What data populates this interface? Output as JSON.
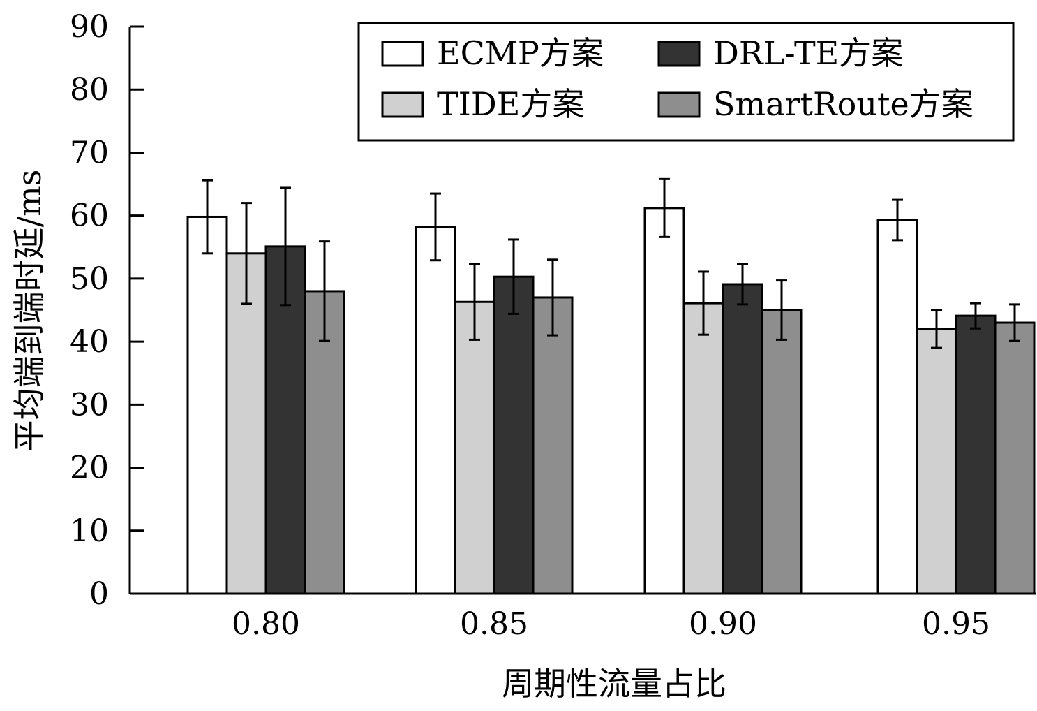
{
  "chart_data": {
    "type": "bar",
    "title": "",
    "xlabel": "周期性流量占比",
    "ylabel": "平均端到端时延/ms",
    "ylim": [
      0,
      90
    ],
    "yticks": [
      0,
      10,
      20,
      30,
      40,
      50,
      60,
      70,
      80,
      90
    ],
    "categories": [
      "0.80",
      "0.85",
      "0.90",
      "0.95"
    ],
    "grid": false,
    "legend_position": "top-right",
    "series": [
      {
        "name": "ECMP方案",
        "color": "#ffffff",
        "values": [
          59.8,
          58.2,
          61.2,
          59.3
        ],
        "errors": [
          5.8,
          5.3,
          4.6,
          3.2
        ]
      },
      {
        "name": "TIDE方案",
        "color": "#d0d0d0",
        "values": [
          54.0,
          46.3,
          46.1,
          42.0
        ],
        "errors": [
          8.0,
          6.0,
          5.0,
          3.0
        ]
      },
      {
        "name": "DRL-TE方案",
        "color": "#333333",
        "values": [
          55.1,
          50.3,
          49.1,
          44.1
        ],
        "errors": [
          9.3,
          5.9,
          3.2,
          2.0
        ]
      },
      {
        "name": "SmartRoute方案",
        "color": "#8e8e8e",
        "values": [
          48.0,
          47.0,
          45.0,
          43.0
        ],
        "errors": [
          7.9,
          6.0,
          4.7,
          2.9
        ]
      }
    ]
  }
}
